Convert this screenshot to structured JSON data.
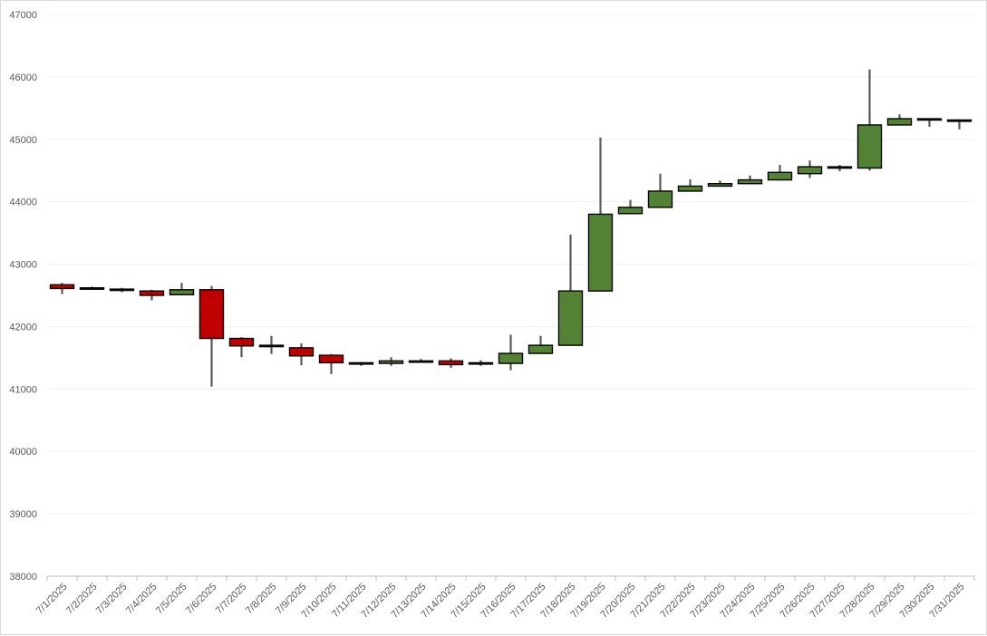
{
  "chart_data": {
    "type": "candlestick",
    "title": "",
    "xlabel": "",
    "ylabel": "",
    "ylim": [
      38000,
      47000
    ],
    "y_ticks": [
      38000,
      39000,
      40000,
      41000,
      42000,
      43000,
      44000,
      45000,
      46000,
      47000
    ],
    "grid": {
      "horizontal": true,
      "vertical": false
    },
    "legend": "none",
    "colors": {
      "up": "#548235",
      "down": "#c00000",
      "outline": "#000000",
      "wick": "#595959",
      "grid": "#f0f0f0",
      "axis": "#bfbfbf"
    },
    "categories": [
      "7/1/2025",
      "7/2/2025",
      "7/3/2025",
      "7/4/2025",
      "7/5/2025",
      "7/6/2025",
      "7/7/2025",
      "7/8/2025",
      "7/9/2025",
      "7/10/2025",
      "7/11/2025",
      "7/12/2025",
      "7/13/2025",
      "7/14/2025",
      "7/15/2025",
      "7/16/2025",
      "7/17/2025",
      "7/18/2025",
      "7/19/2025",
      "7/20/2025",
      "7/21/2025",
      "7/22/2025",
      "7/23/2025",
      "7/24/2025",
      "7/25/2025",
      "7/26/2025",
      "7/27/2025",
      "7/28/2025",
      "7/29/2025",
      "7/30/2025",
      "7/31/2025"
    ],
    "open": [
      42670,
      42620,
      42600,
      42570,
      42510,
      42590,
      41810,
      41700,
      41660,
      41540,
      41420,
      41410,
      41450,
      41450,
      41420,
      41410,
      41570,
      41700,
      42570,
      43810,
      43910,
      44170,
      44250,
      44290,
      44350,
      44450,
      44560,
      44540,
      45230,
      45330,
      45310
    ],
    "high": [
      42700,
      42640,
      42620,
      42590,
      42700,
      42650,
      41830,
      41850,
      41730,
      41560,
      41430,
      41510,
      41480,
      41490,
      41460,
      41870,
      41850,
      43470,
      45030,
      44030,
      44450,
      44360,
      44340,
      44420,
      44590,
      44660,
      44590,
      46120,
      45400,
      45340,
      45320
    ],
    "low": [
      42520,
      42590,
      42550,
      42420,
      42500,
      41040,
      41510,
      41560,
      41380,
      41240,
      41370,
      41370,
      41420,
      41340,
      41370,
      41300,
      41570,
      41700,
      42570,
      43810,
      43910,
      44170,
      44250,
      44290,
      44350,
      44380,
      44490,
      44500,
      45230,
      45200,
      45160
    ],
    "close": [
      42610,
      42610,
      42580,
      42500,
      42590,
      41810,
      41690,
      41680,
      41530,
      41420,
      41400,
      41450,
      41450,
      41390,
      41400,
      41570,
      41700,
      42570,
      43800,
      43910,
      44170,
      44250,
      44290,
      44350,
      44470,
      44560,
      44550,
      45230,
      45330,
      45320,
      45290
    ]
  }
}
